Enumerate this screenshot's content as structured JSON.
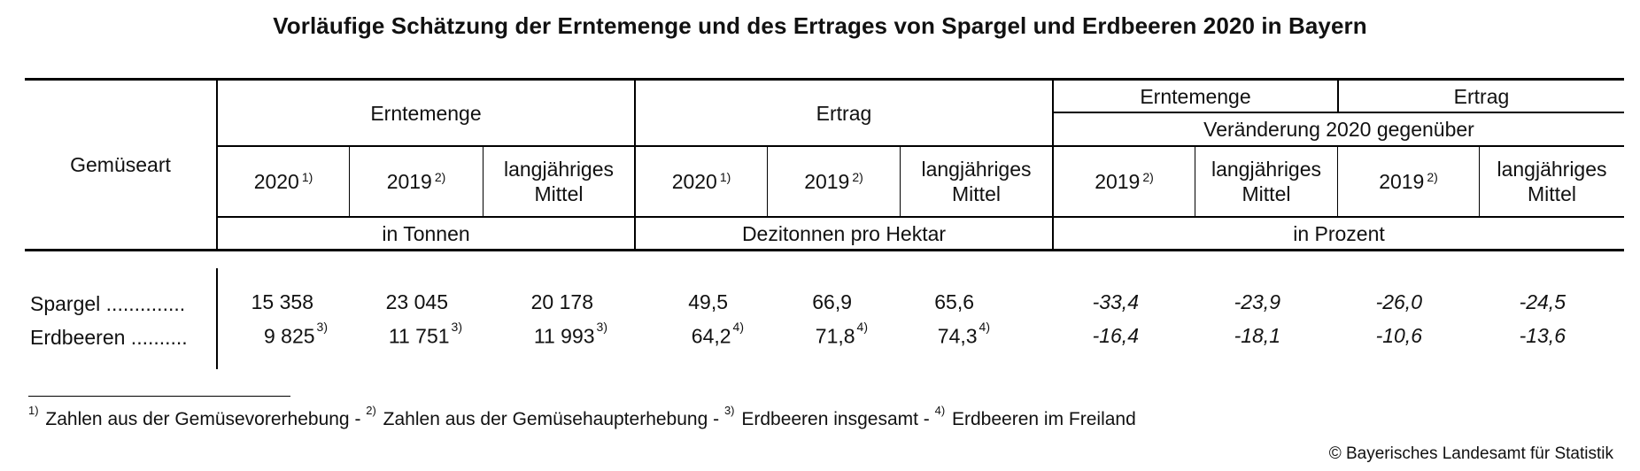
{
  "title": "Vorläufige Schätzung der Erntemenge und des Ertrages von Spargel und Erdbeeren 2020 in Bayern",
  "header": {
    "row_label": "Gemüseart",
    "group_erntemenge": "Erntemenge",
    "group_ertrag": "Ertrag",
    "group_change_erntemenge": "Erntemenge",
    "group_change_ertrag": "Ertrag",
    "change_caption": "Veränderung 2020 gegenüber",
    "col_2020": "2020",
    "col_2019": "2019",
    "col_mittel_1": "langjähriges",
    "col_mittel_2": "Mittel",
    "note_2020": "1)",
    "note_2019": "2)",
    "unit_tonnen": "in Tonnen",
    "unit_dezitonnen": "Dezitonnen pro Hektar",
    "unit_prozent": "in Prozent"
  },
  "rows": [
    {
      "label": "Spargel ..............",
      "erntemenge": [
        "15 358",
        "23 045",
        "20 178"
      ],
      "erntemenge_notes": [
        "",
        "",
        ""
      ],
      "ertrag": [
        "49,5",
        "66,9",
        "65,6"
      ],
      "ertrag_notes": [
        "",
        "",
        ""
      ],
      "changes": [
        "-33,4",
        "-23,9",
        "-26,0",
        "-24,5"
      ]
    },
    {
      "label": "Erdbeeren ..........",
      "erntemenge": [
        "9 825",
        "11 751",
        "11 993"
      ],
      "erntemenge_notes": [
        "3)",
        "3)",
        "3)"
      ],
      "ertrag": [
        "64,2",
        "71,8",
        "74,3"
      ],
      "ertrag_notes": [
        "4)",
        "4)",
        "4)"
      ],
      "changes": [
        "-16,4",
        "-18,1",
        "-10,6",
        "-13,6"
      ]
    }
  ],
  "footnotes": {
    "n1_mark": "1)",
    "n1_text": " Zahlen aus der Gemüsevorerhebung - ",
    "n2_mark": "2)",
    "n2_text": " Zahlen aus der Gemüsehaupterhebung - ",
    "n3_mark": "3)",
    "n3_text": " Erdbeeren insgesamt - ",
    "n4_mark": "4)",
    "n4_text": " Erdbeeren im Freiland"
  },
  "copyright": "© Bayerisches Landesamt für Statistik"
}
